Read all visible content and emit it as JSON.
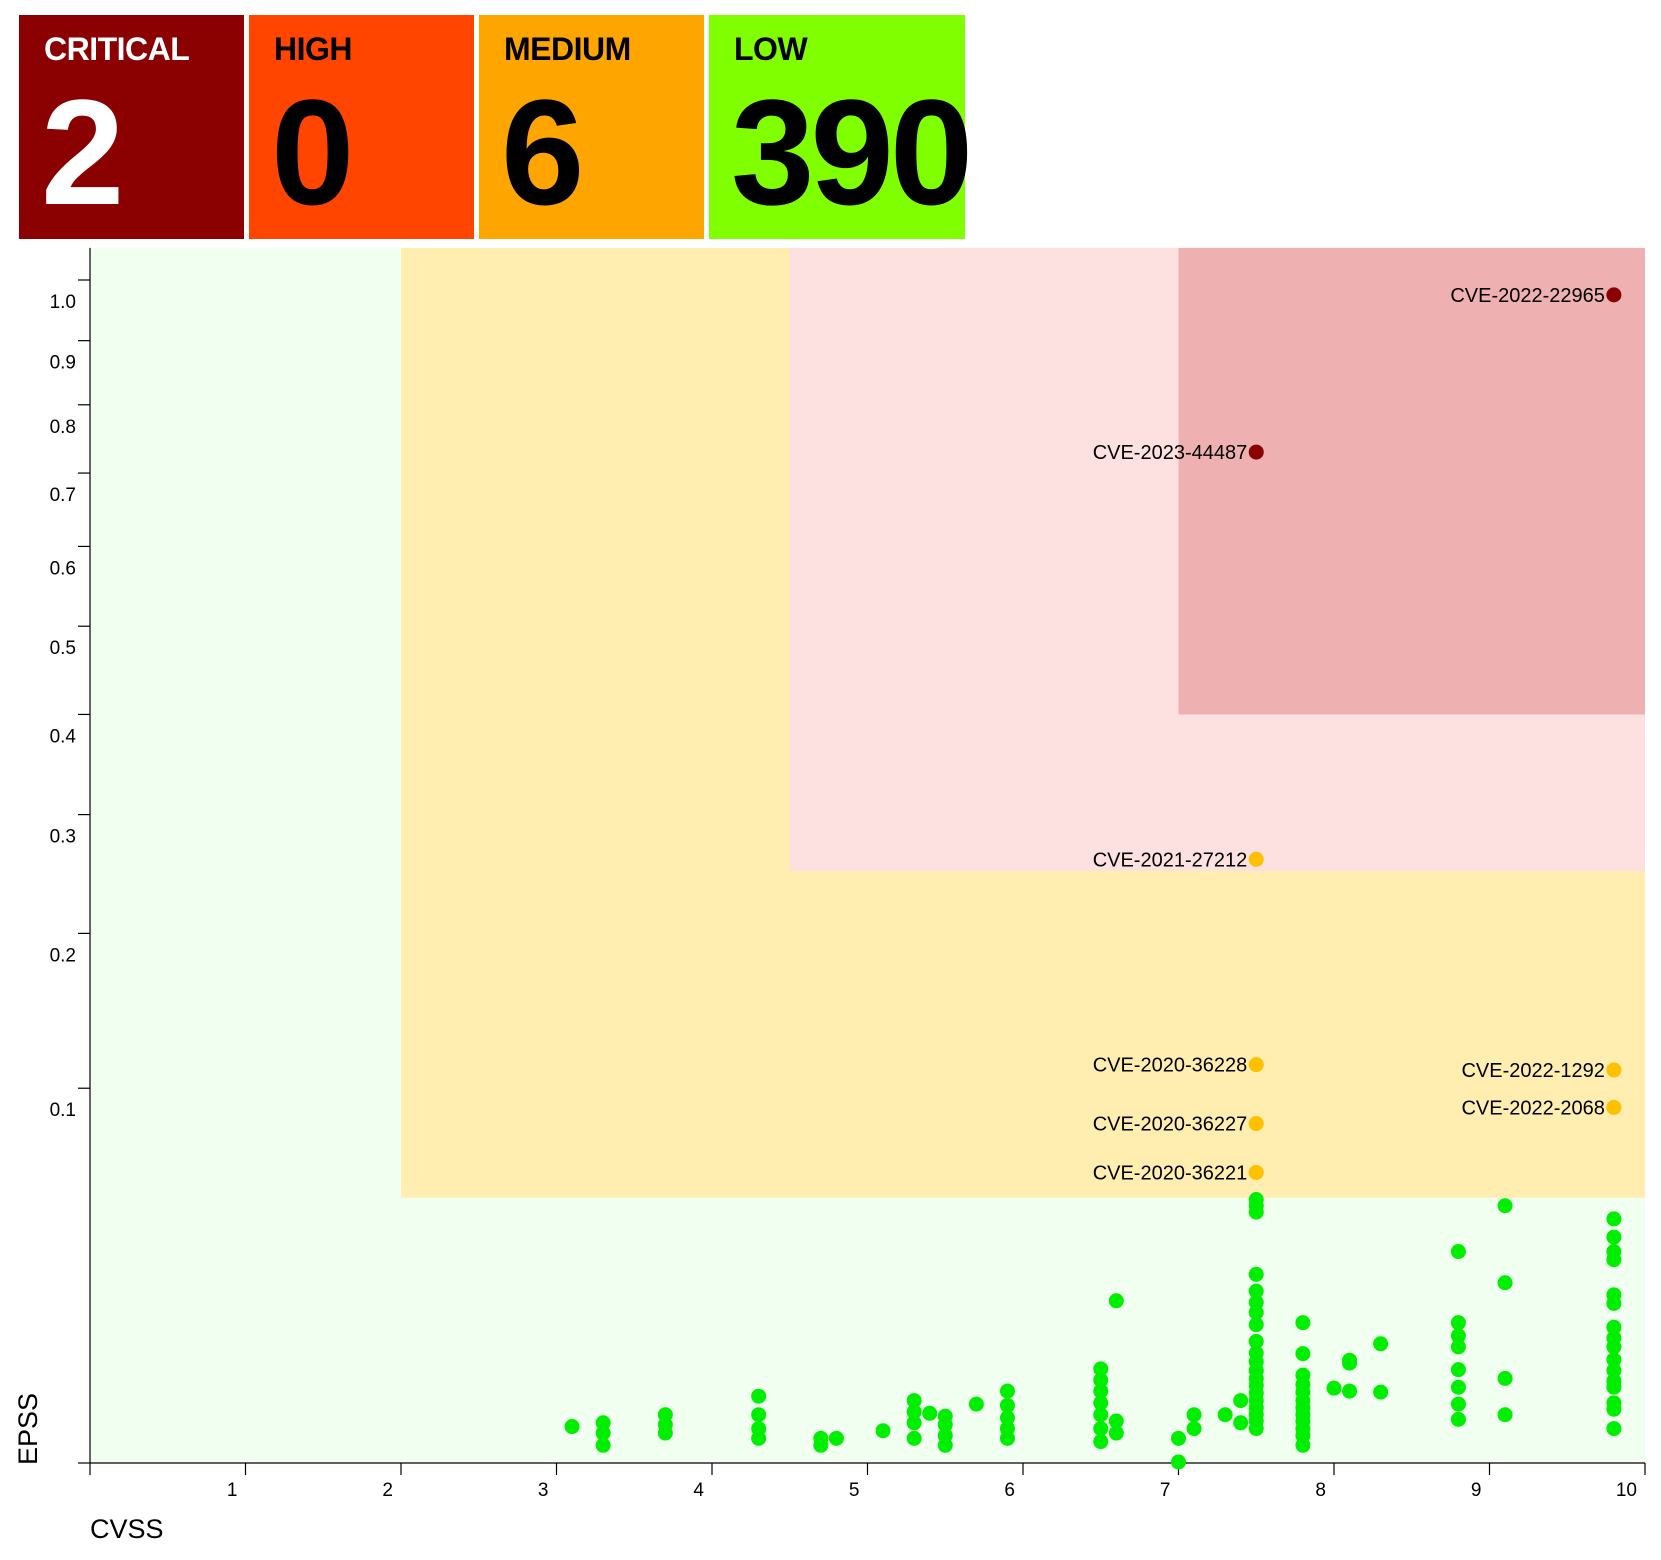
{
  "summary": {
    "tiles": [
      {
        "label": "CRITICAL",
        "count": "2",
        "bg": "#8b0000",
        "fg": "#ffffff"
      },
      {
        "label": "HIGH",
        "count": "0",
        "bg": "#ff4500",
        "fg": "#000000"
      },
      {
        "label": "MEDIUM",
        "count": "6",
        "bg": "#ffa500",
        "fg": "#000000"
      },
      {
        "label": "LOW",
        "count": "390",
        "bg": "#7fff00",
        "fg": "#000000"
      }
    ]
  },
  "chart_data": {
    "type": "scatter",
    "xlabel": "CVSS",
    "ylabel": "EPSS",
    "xlim": [
      0,
      10
    ],
    "ylim": [
      0,
      1.0
    ],
    "y_scale": "sqrt",
    "x_ticks": [
      "1",
      "2",
      "3",
      "4",
      "5",
      "6",
      "7",
      "8",
      "9",
      "10"
    ],
    "y_ticks": [
      "0.1",
      "0.2",
      "0.3",
      "0.4",
      "0.5",
      "0.6",
      "0.7",
      "0.8",
      "0.9",
      "1.0"
    ],
    "grid": false,
    "legend": "none",
    "regions": [
      {
        "severity": "low",
        "x": [
          0,
          10
        ],
        "y": [
          0,
          1.0
        ],
        "color": "#f0fff0"
      },
      {
        "severity": "medium",
        "x": [
          2,
          10
        ],
        "y": [
          0.05,
          1.0
        ],
        "color": "#ffeeb0"
      },
      {
        "severity": "high",
        "x": [
          4.5,
          10
        ],
        "y": [
          0.25,
          1.0
        ],
        "color": "#fde0e0"
      },
      {
        "severity": "critical",
        "x": [
          7,
          10
        ],
        "y": [
          0.4,
          1.0
        ],
        "color": "#eeb0b0"
      }
    ],
    "severity_colors": {
      "critical": "#8b0000",
      "medium": "#ffc000",
      "low": "#00ee00"
    },
    "labeled_points": [
      {
        "label": "CVE-2022-22965",
        "x": 9.8,
        "y": 0.975,
        "severity": "critical"
      },
      {
        "label": "CVE-2023-44487",
        "x": 7.5,
        "y": 0.73,
        "severity": "critical"
      },
      {
        "label": "CVE-2021-27212",
        "x": 7.5,
        "y": 0.26,
        "severity": "medium"
      },
      {
        "label": "CVE-2020-36228",
        "x": 7.5,
        "y": 0.113,
        "severity": "medium"
      },
      {
        "label": "CVE-2022-1292",
        "x": 9.8,
        "y": 0.11,
        "severity": "medium"
      },
      {
        "label": "CVE-2022-2068",
        "x": 9.8,
        "y": 0.09,
        "severity": "medium"
      },
      {
        "label": "CVE-2020-36227",
        "x": 7.5,
        "y": 0.082,
        "severity": "medium"
      },
      {
        "label": "CVE-2020-36221",
        "x": 7.5,
        "y": 0.06,
        "severity": "medium"
      }
    ],
    "low_points": [
      [
        3.1,
        0.0009
      ],
      [
        3.3,
        0.0011
      ],
      [
        3.3,
        0.0006
      ],
      [
        3.3,
        0.0002
      ],
      [
        3.7,
        0.0016
      ],
      [
        3.7,
        0.001
      ],
      [
        3.7,
        0.0006
      ],
      [
        4.3,
        0.0031
      ],
      [
        4.3,
        0.0016
      ],
      [
        4.3,
        0.0008
      ],
      [
        4.3,
        0.0004
      ],
      [
        4.7,
        0.0004
      ],
      [
        4.7,
        0.0002
      ],
      [
        4.8,
        0.0004
      ],
      [
        5.1,
        0.0007
      ],
      [
        5.3,
        0.0027
      ],
      [
        5.3,
        0.0018
      ],
      [
        5.3,
        0.0011
      ],
      [
        5.3,
        0.0004
      ],
      [
        5.4,
        0.0017
      ],
      [
        5.5,
        0.0015
      ],
      [
        5.5,
        0.001
      ],
      [
        5.5,
        0.0005
      ],
      [
        5.5,
        0.0002
      ],
      [
        5.7,
        0.0024
      ],
      [
        5.9,
        0.0036
      ],
      [
        5.9,
        0.0023
      ],
      [
        5.9,
        0.0014
      ],
      [
        5.9,
        0.0008
      ],
      [
        5.9,
        0.0004
      ],
      [
        6.5,
        0.0062
      ],
      [
        6.5,
        0.0048
      ],
      [
        6.5,
        0.0036
      ],
      [
        6.5,
        0.0025
      ],
      [
        6.5,
        0.0016
      ],
      [
        6.5,
        0.0008
      ],
      [
        6.5,
        0.0003
      ],
      [
        6.6,
        0.0186
      ],
      [
        6.6,
        0.0012
      ],
      [
        6.6,
        0.0006
      ],
      [
        7.0,
        0.0004
      ],
      [
        7.0,
        0.0
      ],
      [
        7.1,
        0.0016
      ],
      [
        7.1,
        0.0008
      ],
      [
        7.3,
        0.0016
      ],
      [
        7.4,
        0.0027
      ],
      [
        7.4,
        0.0011
      ],
      [
        7.5,
        0.0493
      ],
      [
        7.5,
        0.047
      ],
      [
        7.5,
        0.0447
      ],
      [
        7.5,
        0.0252
      ],
      [
        7.5,
        0.0209
      ],
      [
        7.5,
        0.0182
      ],
      [
        7.5,
        0.016
      ],
      [
        7.5,
        0.0135
      ],
      [
        7.5,
        0.0104
      ],
      [
        7.5,
        0.0085
      ],
      [
        7.5,
        0.0072
      ],
      [
        7.5,
        0.006
      ],
      [
        7.5,
        0.005
      ],
      [
        7.5,
        0.0042
      ],
      [
        7.5,
        0.0034
      ],
      [
        7.5,
        0.0027
      ],
      [
        7.5,
        0.0021
      ],
      [
        7.5,
        0.0016
      ],
      [
        7.5,
        0.0012
      ],
      [
        7.5,
        0.0008
      ],
      [
        7.8,
        0.0139
      ],
      [
        7.8,
        0.0084
      ],
      [
        7.8,
        0.0054
      ],
      [
        7.8,
        0.0043
      ],
      [
        7.8,
        0.0035
      ],
      [
        7.8,
        0.0027
      ],
      [
        7.8,
        0.0021
      ],
      [
        7.8,
        0.0016
      ],
      [
        7.8,
        0.0012
      ],
      [
        7.8,
        0.0008
      ],
      [
        7.8,
        0.0005
      ],
      [
        7.8,
        0.0002
      ],
      [
        8.0,
        0.0039
      ],
      [
        8.1,
        0.0074
      ],
      [
        8.1,
        0.007
      ],
      [
        8.1,
        0.0036
      ],
      [
        8.3,
        0.01
      ],
      [
        8.3,
        0.0035
      ],
      [
        8.8,
        0.0317
      ],
      [
        8.8,
        0.0139
      ],
      [
        8.8,
        0.0114
      ],
      [
        8.8,
        0.0095
      ],
      [
        8.8,
        0.0061
      ],
      [
        8.8,
        0.004
      ],
      [
        8.8,
        0.0024
      ],
      [
        8.8,
        0.0013
      ],
      [
        9.1,
        0.047
      ],
      [
        9.1,
        0.023
      ],
      [
        9.1,
        0.005
      ],
      [
        9.1,
        0.0016
      ],
      [
        9.8,
        0.0423
      ],
      [
        9.8,
        0.0362
      ],
      [
        9.8,
        0.0317
      ],
      [
        9.8,
        0.0293
      ],
      [
        9.8,
        0.02
      ],
      [
        9.8,
        0.018
      ],
      [
        9.8,
        0.013
      ],
      [
        9.8,
        0.011
      ],
      [
        9.8,
        0.0095
      ],
      [
        9.8,
        0.0075
      ],
      [
        9.8,
        0.006
      ],
      [
        9.8,
        0.0047
      ],
      [
        9.8,
        0.004
      ],
      [
        9.8,
        0.0025
      ],
      [
        9.8,
        0.002
      ],
      [
        9.8,
        0.0008
      ]
    ]
  }
}
